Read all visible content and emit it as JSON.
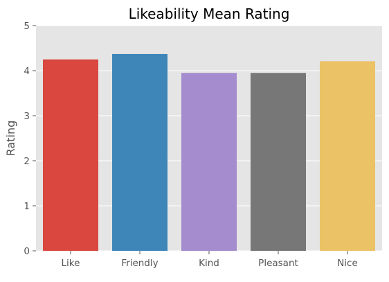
{
  "chart_data": {
    "type": "bar",
    "title": "Likeability Mean Rating",
    "xlabel": "",
    "ylabel": "Rating",
    "categories": [
      "Like",
      "Friendly",
      "Kind",
      "Pleasant",
      "Nice"
    ],
    "values": [
      4.25,
      4.37,
      3.95,
      3.95,
      4.21
    ],
    "colors": [
      "#d9473f",
      "#3f86b8",
      "#a48ccf",
      "#777777",
      "#ebc265"
    ],
    "ylim": [
      0,
      5
    ],
    "yticks": [
      "0",
      "1",
      "2",
      "3",
      "4",
      "5"
    ],
    "grid": true,
    "plot_background": "#e5e5e5",
    "grid_color": "#ffffff"
  }
}
